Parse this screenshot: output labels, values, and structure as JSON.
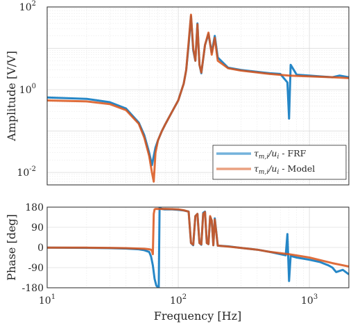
{
  "chart_data": [
    {
      "type": "line",
      "panel": "amplitude",
      "xlabel": "",
      "ylabel": "Amplitude [V/V]",
      "xscale": "log",
      "yscale": "log",
      "xlim": [
        10,
        2000
      ],
      "ylim": [
        0.005,
        100
      ],
      "xticks": [
        10,
        100,
        1000
      ],
      "yticks": [
        0.01,
        1,
        100
      ],
      "ytick_labels": {
        "mantissa": [
          "10",
          "10",
          "10"
        ],
        "exponent": [
          "-2",
          "0",
          "2"
        ]
      },
      "xtick_labels_shown": false,
      "grid": true,
      "legend_position": "bottom-right",
      "series": [
        {
          "name": "τm,i/ui - FRF",
          "legend_math": "τ",
          "legend_sub": "m,i",
          "legend_mid": "/u",
          "legend_sub2": "i",
          "legend_suffix": " - FRF",
          "color": "#0072BD",
          "x": [
            10,
            20,
            30,
            40,
            50,
            55,
            60,
            63,
            65,
            67,
            70,
            75,
            80,
            90,
            100,
            110,
            115,
            120,
            125,
            130,
            135,
            140,
            145,
            150,
            160,
            170,
            180,
            190,
            200,
            240,
            300,
            400,
            500,
            600,
            680,
            700,
            720,
            800,
            1000,
            1200,
            1500,
            1700,
            2000
          ],
          "y": [
            0.65,
            0.6,
            0.5,
            0.35,
            0.16,
            0.08,
            0.03,
            0.015,
            0.025,
            0.04,
            0.06,
            0.1,
            0.15,
            0.3,
            0.55,
            1.4,
            3.0,
            12,
            60,
            9,
            5,
            40,
            4,
            2.5,
            12,
            22,
            8,
            20,
            6,
            3.4,
            3.0,
            2.7,
            2.5,
            2.4,
            1.5,
            0.2,
            4.0,
            2.3,
            2.2,
            2.1,
            2.0,
            2.2,
            2.0
          ]
        },
        {
          "name": "τm,i/ui - Model",
          "legend_math": "τ",
          "legend_sub": "m,i",
          "legend_mid": "/u",
          "legend_sub2": "i",
          "legend_suffix": " - Model",
          "color": "#D95319",
          "x": [
            10,
            20,
            30,
            40,
            50,
            55,
            60,
            63,
            65,
            67,
            70,
            75,
            80,
            90,
            100,
            110,
            115,
            120,
            125,
            130,
            135,
            140,
            145,
            150,
            160,
            170,
            180,
            190,
            200,
            240,
            300,
            400,
            500,
            700,
            1000,
            1500,
            2000
          ],
          "y": [
            0.55,
            0.52,
            0.45,
            0.32,
            0.15,
            0.07,
            0.025,
            0.01,
            0.006,
            0.03,
            0.06,
            0.1,
            0.15,
            0.3,
            0.55,
            1.4,
            3.0,
            14,
            65,
            10,
            5,
            38,
            4,
            2.6,
            12,
            24,
            7,
            18,
            5,
            3.3,
            2.9,
            2.6,
            2.4,
            2.2,
            2.1,
            2.0,
            1.9
          ]
        }
      ]
    },
    {
      "type": "line",
      "panel": "phase",
      "xlabel": "Frequency [Hz]",
      "ylabel": "Phase [deg]",
      "xscale": "log",
      "xlim": [
        10,
        2000
      ],
      "ylim": [
        -180,
        180
      ],
      "xticks": [
        10,
        100,
        1000
      ],
      "xtick_labels": {
        "mantissa": [
          "10",
          "10",
          "10"
        ],
        "exponent": [
          "1",
          "2",
          "3"
        ]
      },
      "yticks": [
        -180,
        -90,
        0,
        90,
        180
      ],
      "ytick_labels": [
        "-180",
        "-90",
        "0",
        "90",
        "180"
      ],
      "grid": true,
      "series": [
        {
          "name": "FRF",
          "color": "#0072BD",
          "x": [
            10,
            20,
            30,
            40,
            50,
            55,
            60,
            62,
            64,
            66,
            68,
            70,
            71,
            72,
            73,
            75,
            78,
            80,
            90,
            100,
            110,
            120,
            125,
            130,
            135,
            140,
            145,
            150,
            155,
            160,
            165,
            170,
            175,
            180,
            185,
            190,
            200,
            240,
            300,
            400,
            500,
            600,
            660,
            680,
            700,
            720,
            800,
            1000,
            1200,
            1400,
            1500,
            1600,
            1800,
            2000
          ],
          "y": [
            -1,
            -2,
            -3,
            -5,
            -8,
            -12,
            -20,
            -40,
            -80,
            -140,
            -170,
            -178,
            -179,
            178,
            175,
            172,
            170,
            170,
            170,
            168,
            165,
            160,
            20,
            10,
            140,
            150,
            20,
            12,
            155,
            160,
            20,
            15,
            135,
            120,
            10,
            130,
            8,
            5,
            -2,
            -10,
            -20,
            -30,
            -35,
            60,
            -150,
            -38,
            -45,
            -55,
            -65,
            -80,
            -90,
            -110,
            -100,
            -120
          ]
        },
        {
          "name": "Model",
          "color": "#D95319",
          "x": [
            10,
            20,
            30,
            40,
            50,
            55,
            60,
            62,
            63,
            64,
            65,
            66,
            67,
            70,
            80,
            90,
            100,
            110,
            120,
            125,
            130,
            135,
            140,
            145,
            150,
            155,
            160,
            165,
            170,
            175,
            180,
            185,
            190,
            200,
            240,
            300,
            400,
            500,
            700,
            1000,
            1500,
            2000
          ],
          "y": [
            -1,
            -1,
            -2,
            -3,
            -5,
            -6,
            -8,
            -10,
            -15,
            -30,
            150,
            170,
            172,
            172,
            172,
            171,
            170,
            166,
            160,
            20,
            12,
            140,
            150,
            20,
            14,
            150,
            158,
            20,
            15,
            140,
            120,
            10,
            125,
            8,
            4,
            -2,
            -10,
            -20,
            -30,
            -45,
            -70,
            -85
          ]
        }
      ]
    }
  ]
}
